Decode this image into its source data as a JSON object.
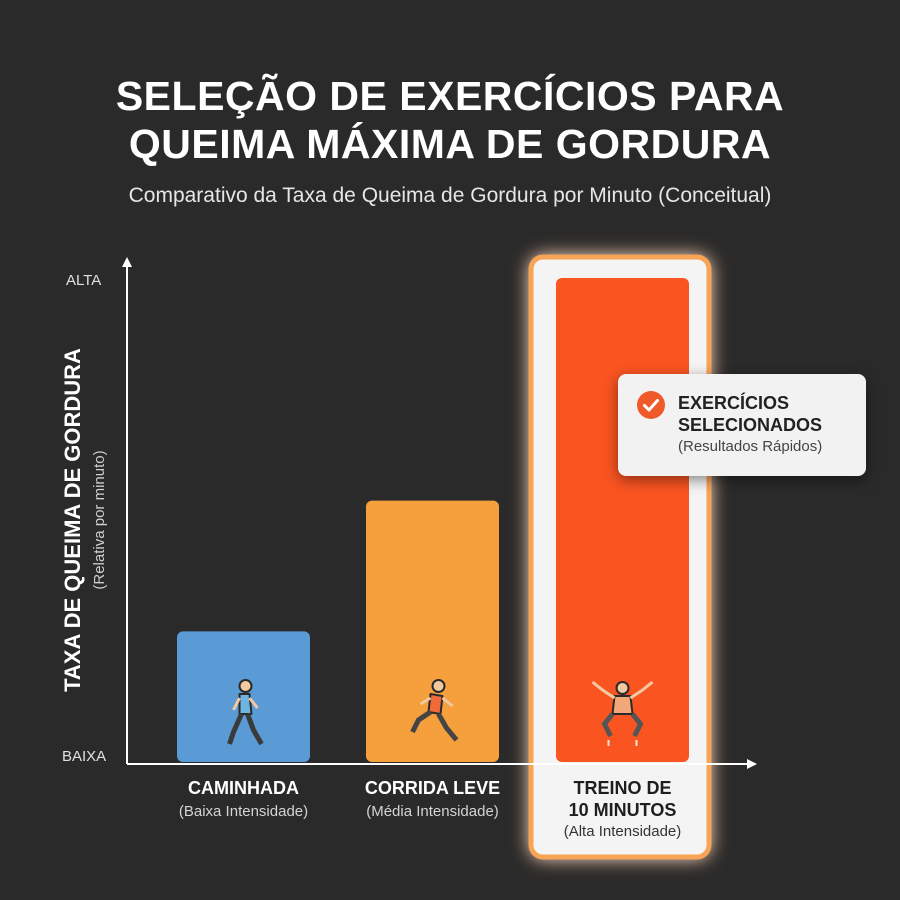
{
  "title_line1": "SELEÇÃO DE EXERCÍCIOS PARA",
  "title_line2": "QUEIMA MÁXIMA DE GORDURA",
  "subtitle": "Comparativo da Taxa de Queima de Gordura por Minuto (Conceitual)",
  "callout": {
    "title_line1": "EXERCÍCIOS",
    "title_line2": "SELECIONADOS",
    "subtitle": "(Resultados Rápidos)",
    "icon": "check-circle-icon"
  },
  "chart_data": {
    "type": "bar",
    "title": "SELEÇÃO DE EXERCÍCIOS PARA QUEIMA MÁXIMA DE GORDURA",
    "subtitle": "Comparativo da Taxa de Queima de Gordura por Minuto (Conceitual)",
    "ylabel": "TAXA DE QUEIMA DE GORDURA",
    "ylabel_sub": "(Relativa por minuto)",
    "ytick_low": "BAIXA",
    "ytick_high": "ALTA",
    "ylim": [
      0,
      1
    ],
    "grid": false,
    "categories": [
      {
        "name": "CAMINHADA",
        "detail": "(Baixa Intensidade)",
        "name_lines": [
          "CAMINHADA"
        ],
        "icon": "walking-person-icon"
      },
      {
        "name": "CORRIDA LEVE",
        "detail": "(Média Intensidade)",
        "name_lines": [
          "CORRIDA LEVE"
        ],
        "icon": "running-person-icon"
      },
      {
        "name": "TREINO DE 10 MINUTOS",
        "detail": "(Alta Intensidade)",
        "name_lines": [
          "TREINO DE",
          "10 MINUTOS"
        ],
        "icon": "jumping-person-icon",
        "highlighted": true
      }
    ],
    "values": [
      0.27,
      0.54,
      1.0
    ],
    "colors": [
      "#5b9bd5",
      "#f5a03c",
      "#fa5421"
    ],
    "highlight_border_color": "#f7a455"
  }
}
